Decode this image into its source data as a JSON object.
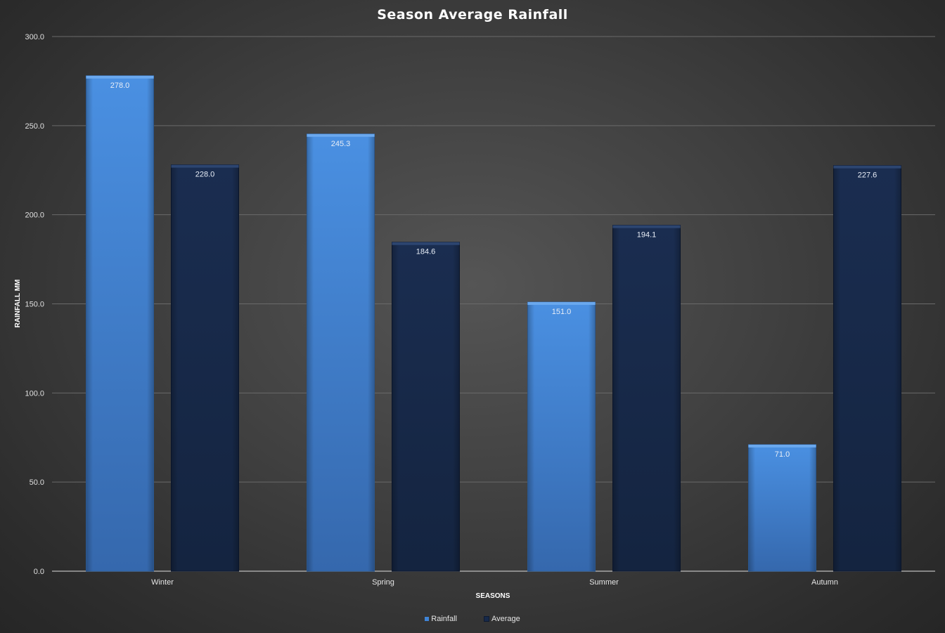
{
  "chart_data": {
    "type": "bar",
    "title": "Season Average Rainfall",
    "xlabel": "SEASONS",
    "ylabel": "RAINFALL MM",
    "categories": [
      "Winter",
      "Spring",
      "Summer",
      "Autumn"
    ],
    "series": [
      {
        "name": "Rainfall",
        "values": [
          278.0,
          245.3,
          151.0,
          71.0
        ],
        "color": "#3f84d6"
      },
      {
        "name": "Average",
        "values": [
          228.0,
          184.6,
          194.1,
          227.6
        ],
        "color": "#17294a"
      }
    ],
    "data_labels": [
      [
        "278.0",
        "245.3",
        "151.0",
        "71.0"
      ],
      [
        "228.0",
        "184.6",
        "194.1",
        "227.6"
      ]
    ],
    "yticks": [
      "0.0",
      "50.0",
      "100.0",
      "150.0",
      "200.0",
      "250.0",
      "300.0"
    ],
    "ylim": [
      0,
      300
    ],
    "grid": true,
    "legend_position": "bottom"
  }
}
